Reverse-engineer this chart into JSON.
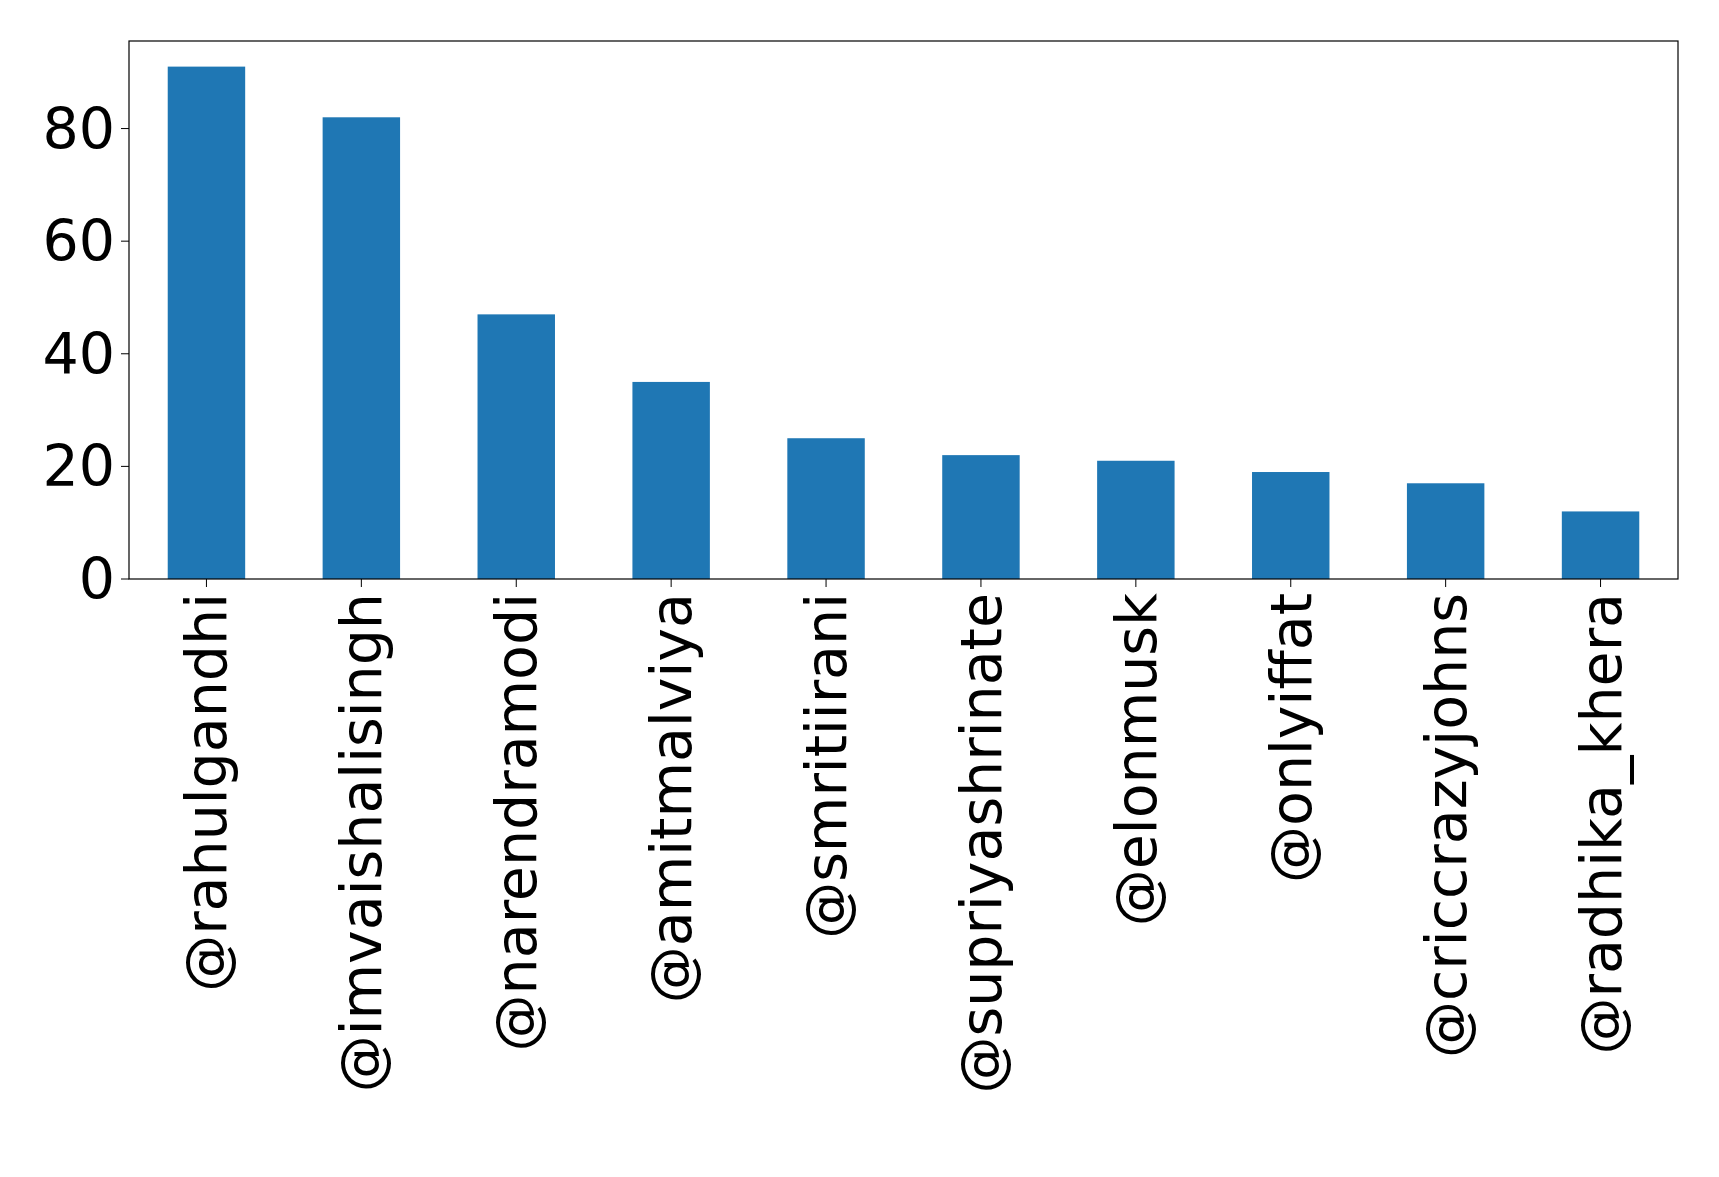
{
  "chart_data": {
    "type": "bar",
    "categories": [
      "@rahulgandhi",
      "@imvaishalisingh",
      "@narendramodi",
      "@amitmalviya",
      "@smritiirani",
      "@supriyashrinate",
      "@elonmusk",
      "@onlyiffat",
      "@criccrazyjohns",
      "@radhika_khera"
    ],
    "values": [
      91,
      82,
      47,
      35,
      25,
      22,
      21,
      19,
      17,
      12
    ],
    "color": "#1f77b4",
    "ylim": [
      0,
      95.55
    ],
    "yticks": [
      0,
      20,
      40,
      60,
      80
    ],
    "grid": false
  }
}
